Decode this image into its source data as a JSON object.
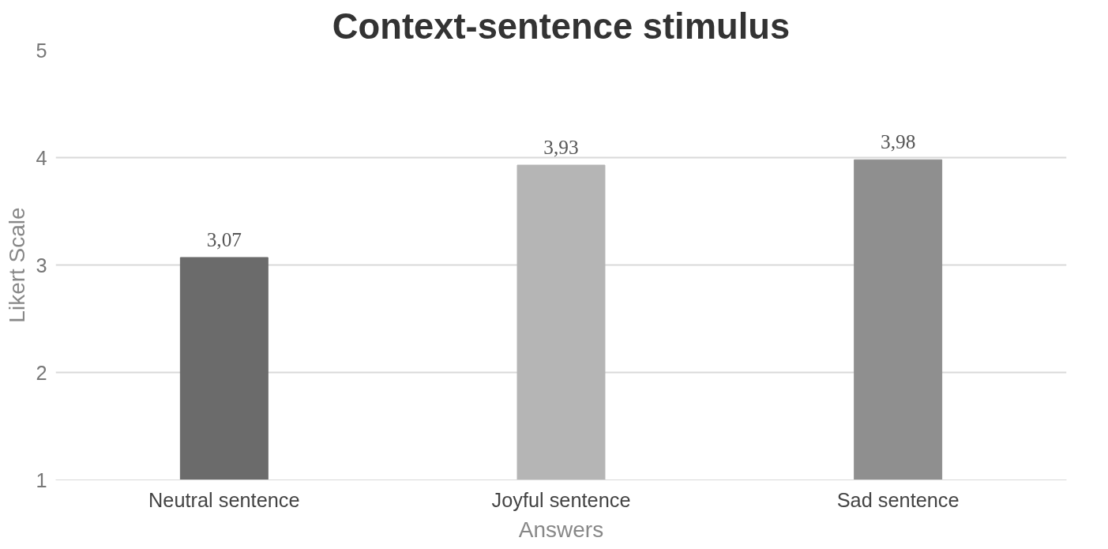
{
  "chart_data": {
    "type": "bar",
    "title": "Context-sentence stimulus",
    "xlabel": "Answers",
    "ylabel": "Likert Scale",
    "categories": [
      "Neutral sentence",
      "Joyful sentence",
      "Sad sentence"
    ],
    "values": [
      3.07,
      3.93,
      3.98
    ],
    "colors": [
      "#6b6b6b",
      "#b5b5b5",
      "#8f8f8f"
    ],
    "value_labels": [
      "3,07",
      "3,93",
      "3,98"
    ],
    "ylim": [
      1,
      5
    ],
    "yticks": [
      1,
      2,
      3,
      4,
      5
    ],
    "grid": "y"
  }
}
